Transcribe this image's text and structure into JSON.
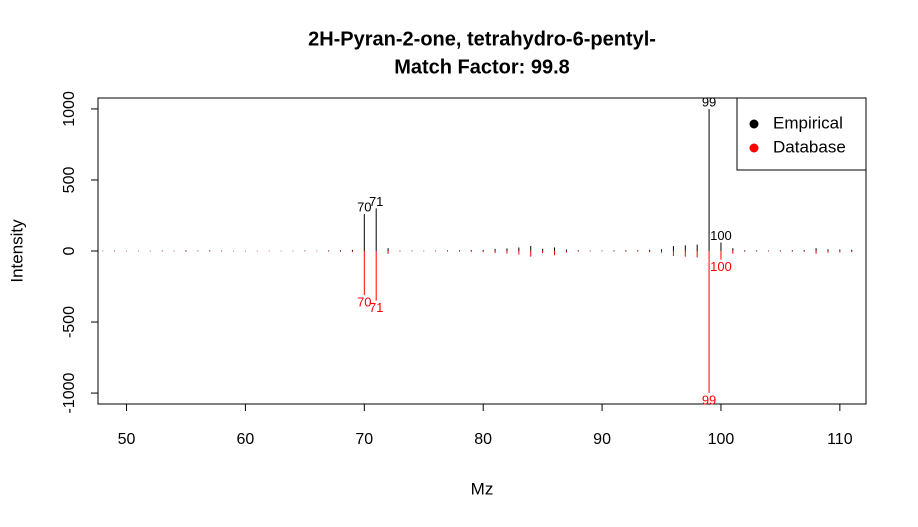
{
  "chart_data": {
    "type": "mirror-spectrum",
    "title": "2H-Pyran-2-one, tetrahydro-6-pentyl-",
    "subtitle": "Match Factor: 99.8",
    "x_label": "Mz",
    "y_label": "Intensity",
    "x": [
      48,
      49,
      50,
      51,
      52,
      53,
      54,
      55,
      56,
      57,
      58,
      59,
      60,
      61,
      62,
      63,
      64,
      65,
      66,
      67,
      68,
      69,
      70,
      71,
      72,
      73,
      74,
      75,
      76,
      77,
      78,
      79,
      80,
      81,
      82,
      83,
      84,
      85,
      86,
      87,
      88,
      89,
      90,
      91,
      92,
      93,
      94,
      95,
      96,
      97,
      98,
      99,
      100,
      101,
      102,
      103,
      104,
      105,
      106,
      107,
      108,
      109,
      110,
      111
    ],
    "series": [
      {
        "name": "Empirical",
        "color": "#000000",
        "values": [
          2,
          3,
          2,
          2,
          2,
          3,
          2,
          5,
          3,
          4,
          3,
          2,
          2,
          2,
          2,
          2,
          2,
          3,
          2,
          4,
          5,
          8,
          260,
          300,
          20,
          3,
          3,
          2,
          3,
          4,
          5,
          6,
          8,
          15,
          18,
          25,
          35,
          15,
          25,
          10,
          5,
          3,
          3,
          4,
          5,
          5,
          8,
          12,
          35,
          40,
          45,
          1000,
          60,
          20,
          5,
          4,
          3,
          4,
          5,
          6,
          20,
          12,
          10,
          8
        ]
      },
      {
        "name": "Database",
        "color": "#ff0000",
        "values": [
          -2,
          -3,
          -2,
          -2,
          -2,
          -3,
          -2,
          -5,
          -3,
          -4,
          -3,
          -2,
          -2,
          -2,
          -2,
          -2,
          -2,
          -3,
          -2,
          -4,
          -5,
          -8,
          -310,
          -350,
          -20,
          -3,
          -3,
          -2,
          -3,
          -4,
          -5,
          -6,
          -8,
          -15,
          -18,
          -25,
          -40,
          -15,
          -30,
          -10,
          -5,
          -3,
          -3,
          -4,
          -5,
          -5,
          -8,
          -12,
          -35,
          -40,
          -45,
          -1000,
          -60,
          -20,
          -5,
          -4,
          -3,
          -4,
          -5,
          -6,
          -20,
          -12,
          -10,
          -8
        ]
      }
    ],
    "xlim": [
      47.6,
      112.2
    ],
    "ylim": [
      -1077,
      1077
    ],
    "xticks": [
      50,
      60,
      70,
      80,
      90,
      100,
      110
    ],
    "yticks": [
      -1000,
      -500,
      0,
      500,
      1000
    ],
    "legend": "topright"
  }
}
